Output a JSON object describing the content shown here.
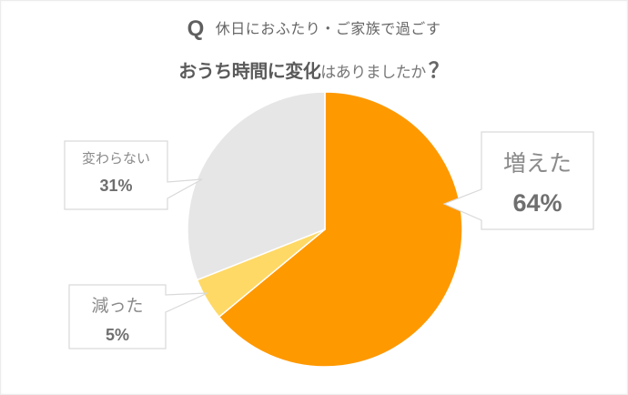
{
  "title": {
    "q_mark": "Q",
    "line1": "休日におふたり・ご家族で過ごす",
    "line2_strong": "おうち時間に変化",
    "line2_light": "はありましたか",
    "line2_qmark": "？"
  },
  "callouts": {
    "increased": {
      "label": "増えた",
      "value": "64%"
    },
    "unchanged": {
      "label": "変わらない",
      "value": "31%"
    },
    "decreased": {
      "label": "減った",
      "value": "5%"
    }
  },
  "colors": {
    "increased": "#FF9900",
    "decreased": "#FFD966",
    "unchanged": "#E6E6E6",
    "callout_border": "#D9D9D9"
  },
  "chart_data": {
    "type": "pie",
    "title": "休日におふたり・ご家族で過ごすおうち時間に変化はありましたか？",
    "categories": [
      "増えた",
      "減った",
      "変わらない"
    ],
    "values": [
      64,
      5,
      31
    ],
    "unit": "%",
    "colors": [
      "#FF9900",
      "#FFD966",
      "#E6E6E6"
    ],
    "start_angle": "12 o'clock, clockwise",
    "legend": "none (callout labels)"
  }
}
